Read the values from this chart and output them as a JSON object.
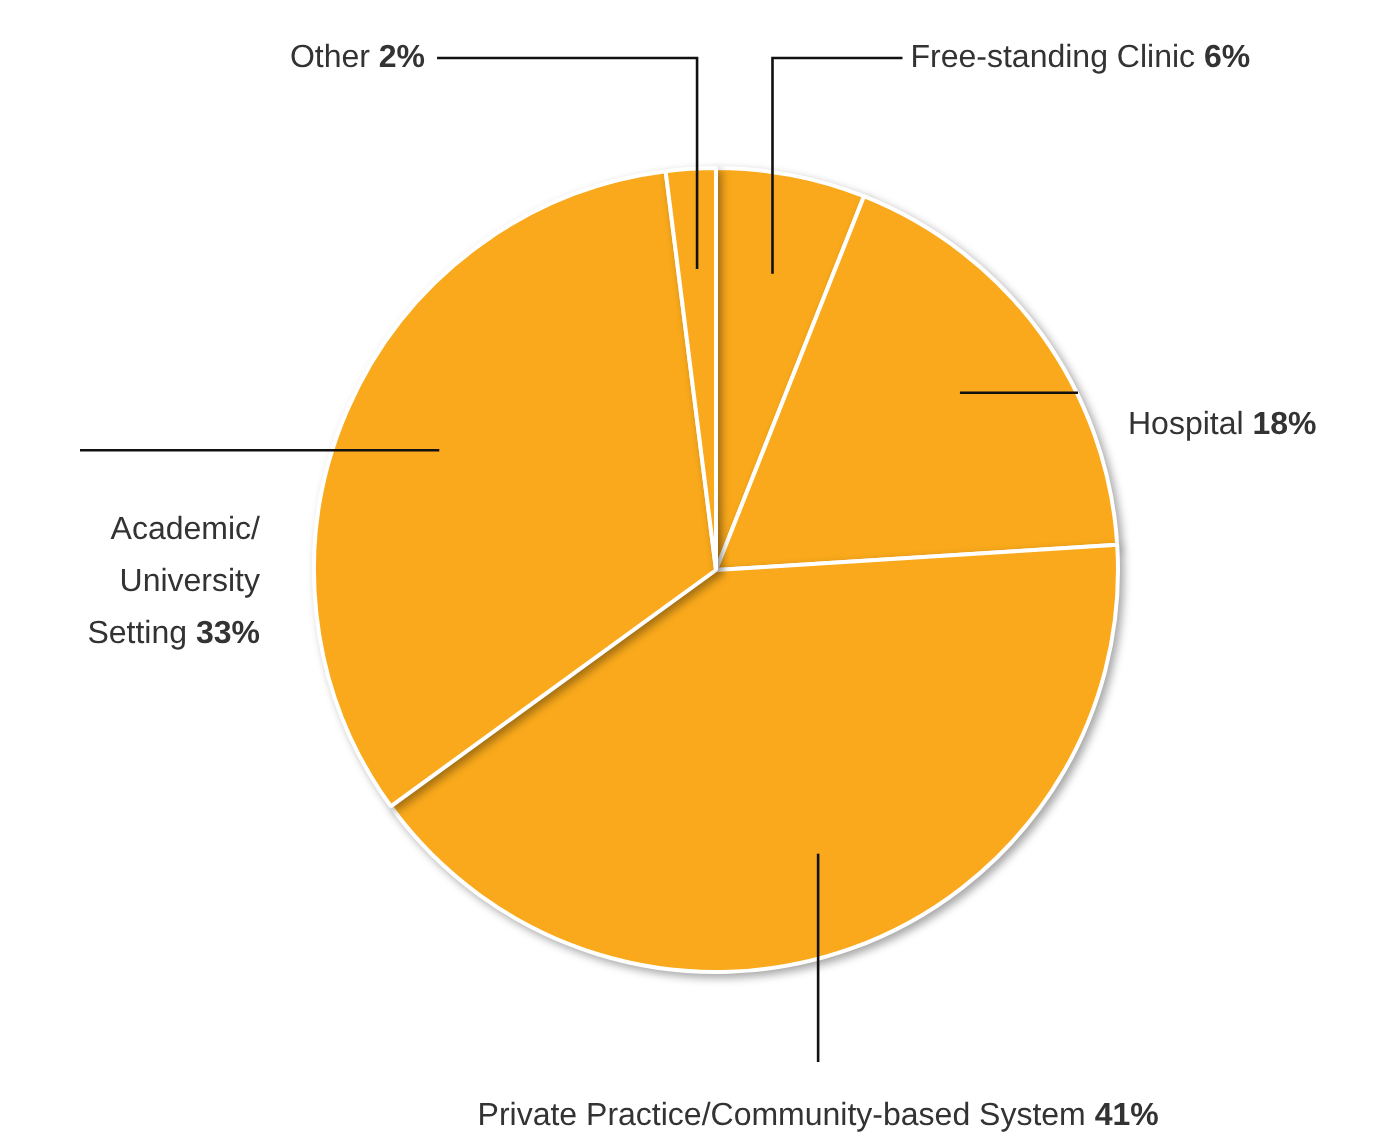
{
  "chart_data": {
    "type": "pie",
    "categories": [
      "Free-standing Clinic",
      "Hospital",
      "Private Practice/Community-based System",
      "Academic/University Setting",
      "Other"
    ],
    "values": [
      6,
      18,
      41,
      33,
      2
    ],
    "value_labels": [
      "6%",
      "18%",
      "41%",
      "33%",
      "2%"
    ],
    "colors": [
      "#f9a91b",
      "#f9a91b",
      "#f9a91b",
      "#f9a91b",
      "#f9a91b"
    ],
    "legend": false
  }
}
